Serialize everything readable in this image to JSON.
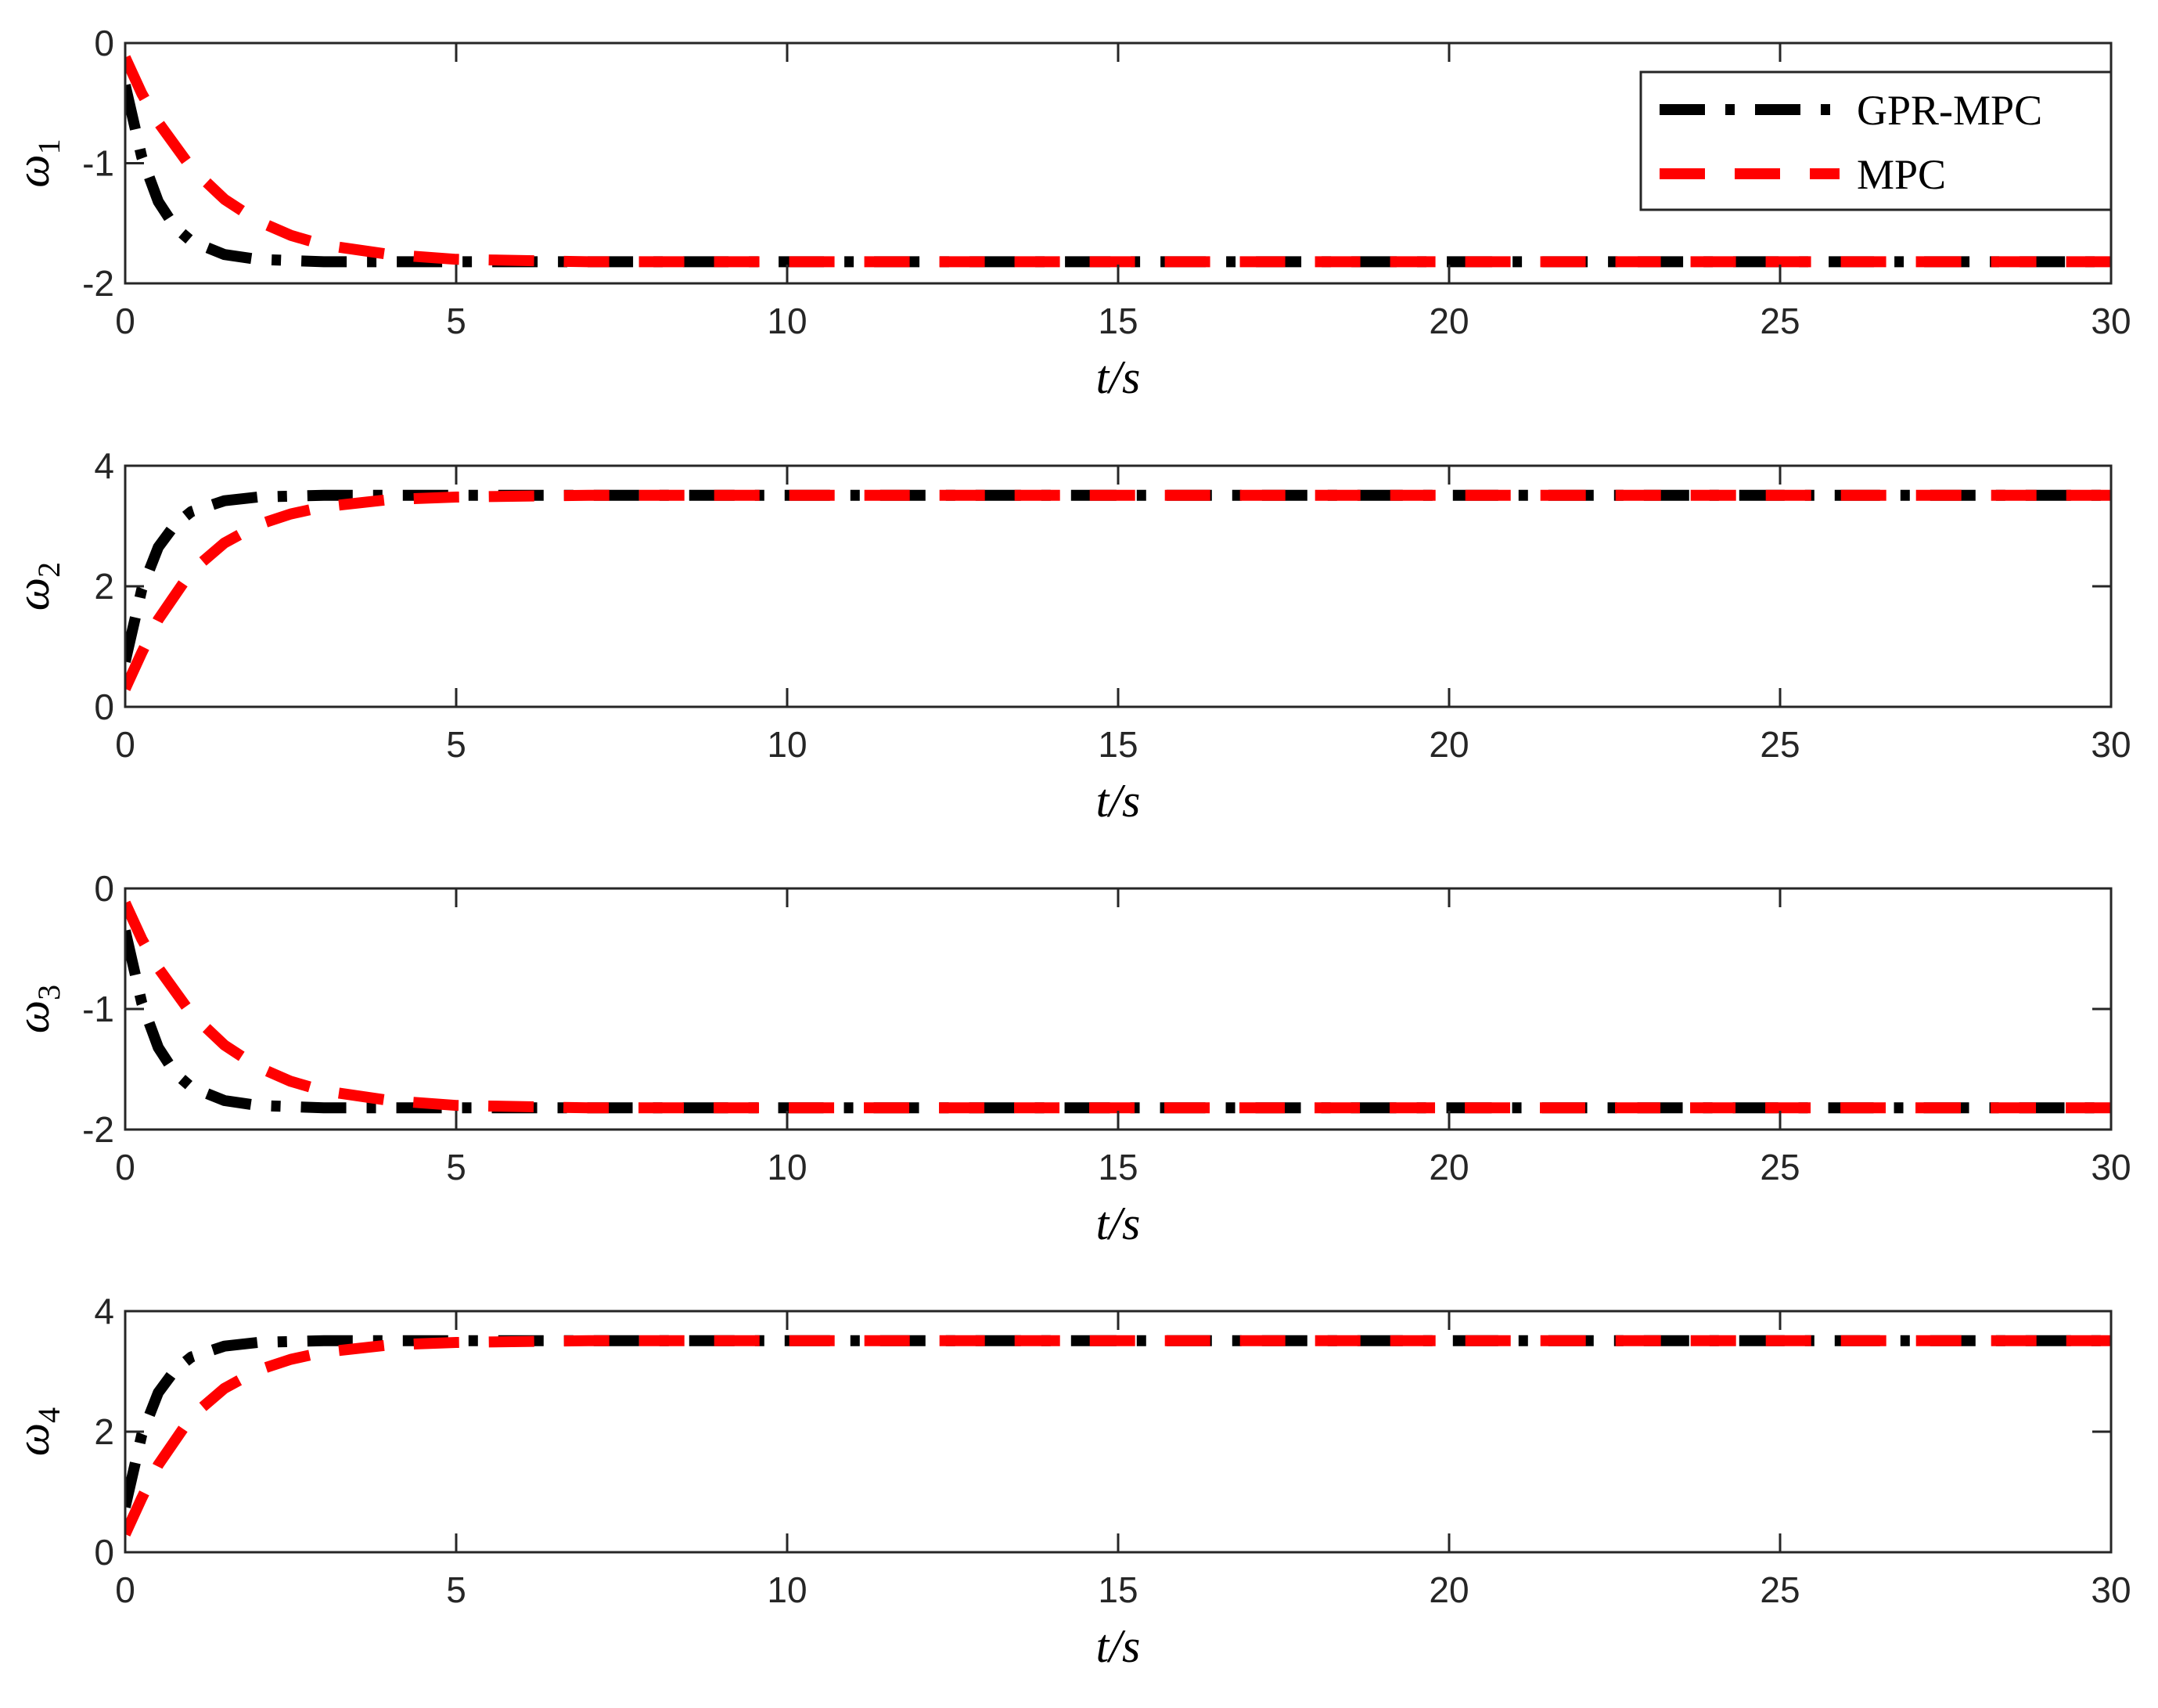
{
  "chart_data": [
    {
      "type": "line",
      "ylabel": "ω",
      "ylabel_sub": "1",
      "xlabel": "t/s",
      "xlim": [
        0,
        30
      ],
      "ylim": [
        -2,
        0
      ],
      "xticks": [
        0,
        5,
        10,
        15,
        20,
        25,
        30
      ],
      "yticks": [
        -2,
        -1,
        0
      ],
      "grid": false,
      "legend": "top-right",
      "series": [
        {
          "name": "GPR-MPC",
          "color": "#000000",
          "style": "dash-dot",
          "x": [
            0,
            0.25,
            0.5,
            0.75,
            1,
            1.5,
            2,
            3,
            4,
            5,
            10,
            15,
            20,
            25,
            30
          ],
          "y": [
            -0.35,
            -0.95,
            -1.32,
            -1.53,
            -1.65,
            -1.76,
            -1.8,
            -1.82,
            -1.82,
            -1.82,
            -1.82,
            -1.82,
            -1.82,
            -1.82,
            -1.82
          ]
        },
        {
          "name": "MPC",
          "color": "#ff0000",
          "style": "dashed",
          "x": [
            0,
            0.25,
            0.5,
            1,
            1.5,
            2,
            2.5,
            3,
            4,
            5,
            7,
            10,
            15,
            20,
            25,
            30
          ],
          "y": [
            -0.12,
            -0.42,
            -0.66,
            -1.04,
            -1.3,
            -1.48,
            -1.6,
            -1.68,
            -1.76,
            -1.8,
            -1.82,
            -1.82,
            -1.82,
            -1.82,
            -1.82,
            -1.82
          ]
        }
      ]
    },
    {
      "type": "line",
      "ylabel": "ω",
      "ylabel_sub": "2",
      "xlabel": "t/s",
      "xlim": [
        0,
        30
      ],
      "ylim": [
        0,
        4
      ],
      "xticks": [
        0,
        5,
        10,
        15,
        20,
        25,
        30
      ],
      "yticks": [
        0,
        2,
        4
      ],
      "grid": false,
      "series": [
        {
          "name": "GPR-MPC",
          "color": "#000000",
          "style": "dash-dot",
          "x": [
            0,
            0.25,
            0.5,
            0.75,
            1,
            1.5,
            2,
            3,
            4,
            5,
            10,
            15,
            20,
            25,
            30
          ],
          "y": [
            0.75,
            1.95,
            2.65,
            3.02,
            3.24,
            3.42,
            3.48,
            3.51,
            3.51,
            3.51,
            3.51,
            3.51,
            3.51,
            3.51,
            3.51
          ]
        },
        {
          "name": "MPC",
          "color": "#ff0000",
          "style": "dashed",
          "x": [
            0,
            0.25,
            0.5,
            1,
            1.5,
            2,
            2.5,
            3,
            4,
            5,
            7,
            10,
            15,
            20,
            25,
            30
          ],
          "y": [
            0.3,
            0.9,
            1.45,
            2.25,
            2.72,
            3.02,
            3.2,
            3.32,
            3.44,
            3.48,
            3.51,
            3.51,
            3.51,
            3.51,
            3.51,
            3.51
          ]
        }
      ]
    },
    {
      "type": "line",
      "ylabel": "ω",
      "ylabel_sub": "3",
      "xlabel": "t/s",
      "xlim": [
        0,
        30
      ],
      "ylim": [
        -2,
        0
      ],
      "xticks": [
        0,
        5,
        10,
        15,
        20,
        25,
        30
      ],
      "yticks": [
        -2,
        -1,
        0
      ],
      "grid": false,
      "series": [
        {
          "name": "GPR-MPC",
          "color": "#000000",
          "style": "dash-dot",
          "x": [
            0,
            0.25,
            0.5,
            0.75,
            1,
            1.5,
            2,
            3,
            4,
            5,
            10,
            15,
            20,
            25,
            30
          ],
          "y": [
            -0.35,
            -0.95,
            -1.32,
            -1.53,
            -1.65,
            -1.76,
            -1.8,
            -1.82,
            -1.82,
            -1.82,
            -1.82,
            -1.82,
            -1.82,
            -1.82,
            -1.82
          ]
        },
        {
          "name": "MPC",
          "color": "#ff0000",
          "style": "dashed",
          "x": [
            0,
            0.25,
            0.5,
            1,
            1.5,
            2,
            2.5,
            3,
            4,
            5,
            7,
            10,
            15,
            20,
            25,
            30
          ],
          "y": [
            -0.12,
            -0.42,
            -0.66,
            -1.04,
            -1.3,
            -1.48,
            -1.6,
            -1.68,
            -1.76,
            -1.8,
            -1.82,
            -1.82,
            -1.82,
            -1.82,
            -1.82,
            -1.82
          ]
        }
      ]
    },
    {
      "type": "line",
      "ylabel": "ω",
      "ylabel_sub": "4",
      "xlabel": "t/s",
      "xlim": [
        0,
        30
      ],
      "ylim": [
        0,
        4
      ],
      "xticks": [
        0,
        5,
        10,
        15,
        20,
        25,
        30
      ],
      "yticks": [
        0,
        2,
        4
      ],
      "grid": false,
      "series": [
        {
          "name": "GPR-MPC",
          "color": "#000000",
          "style": "dash-dot",
          "x": [
            0,
            0.25,
            0.5,
            0.75,
            1,
            1.5,
            2,
            3,
            4,
            5,
            10,
            15,
            20,
            25,
            30
          ],
          "y": [
            0.75,
            1.95,
            2.65,
            3.02,
            3.24,
            3.42,
            3.48,
            3.51,
            3.51,
            3.51,
            3.51,
            3.51,
            3.51,
            3.51,
            3.51
          ]
        },
        {
          "name": "MPC",
          "color": "#ff0000",
          "style": "dashed",
          "x": [
            0,
            0.25,
            0.5,
            1,
            1.5,
            2,
            2.5,
            3,
            4,
            5,
            7,
            10,
            15,
            20,
            25,
            30
          ],
          "y": [
            0.3,
            0.9,
            1.45,
            2.25,
            2.72,
            3.02,
            3.2,
            3.32,
            3.44,
            3.48,
            3.51,
            3.51,
            3.51,
            3.51,
            3.51,
            3.51
          ]
        }
      ]
    }
  ],
  "legend": {
    "entries": [
      {
        "label": "GPR-MPC",
        "color": "#000000",
        "style": "dash-dot"
      },
      {
        "label": "MPC",
        "color": "#ff0000",
        "style": "dashed"
      }
    ]
  }
}
